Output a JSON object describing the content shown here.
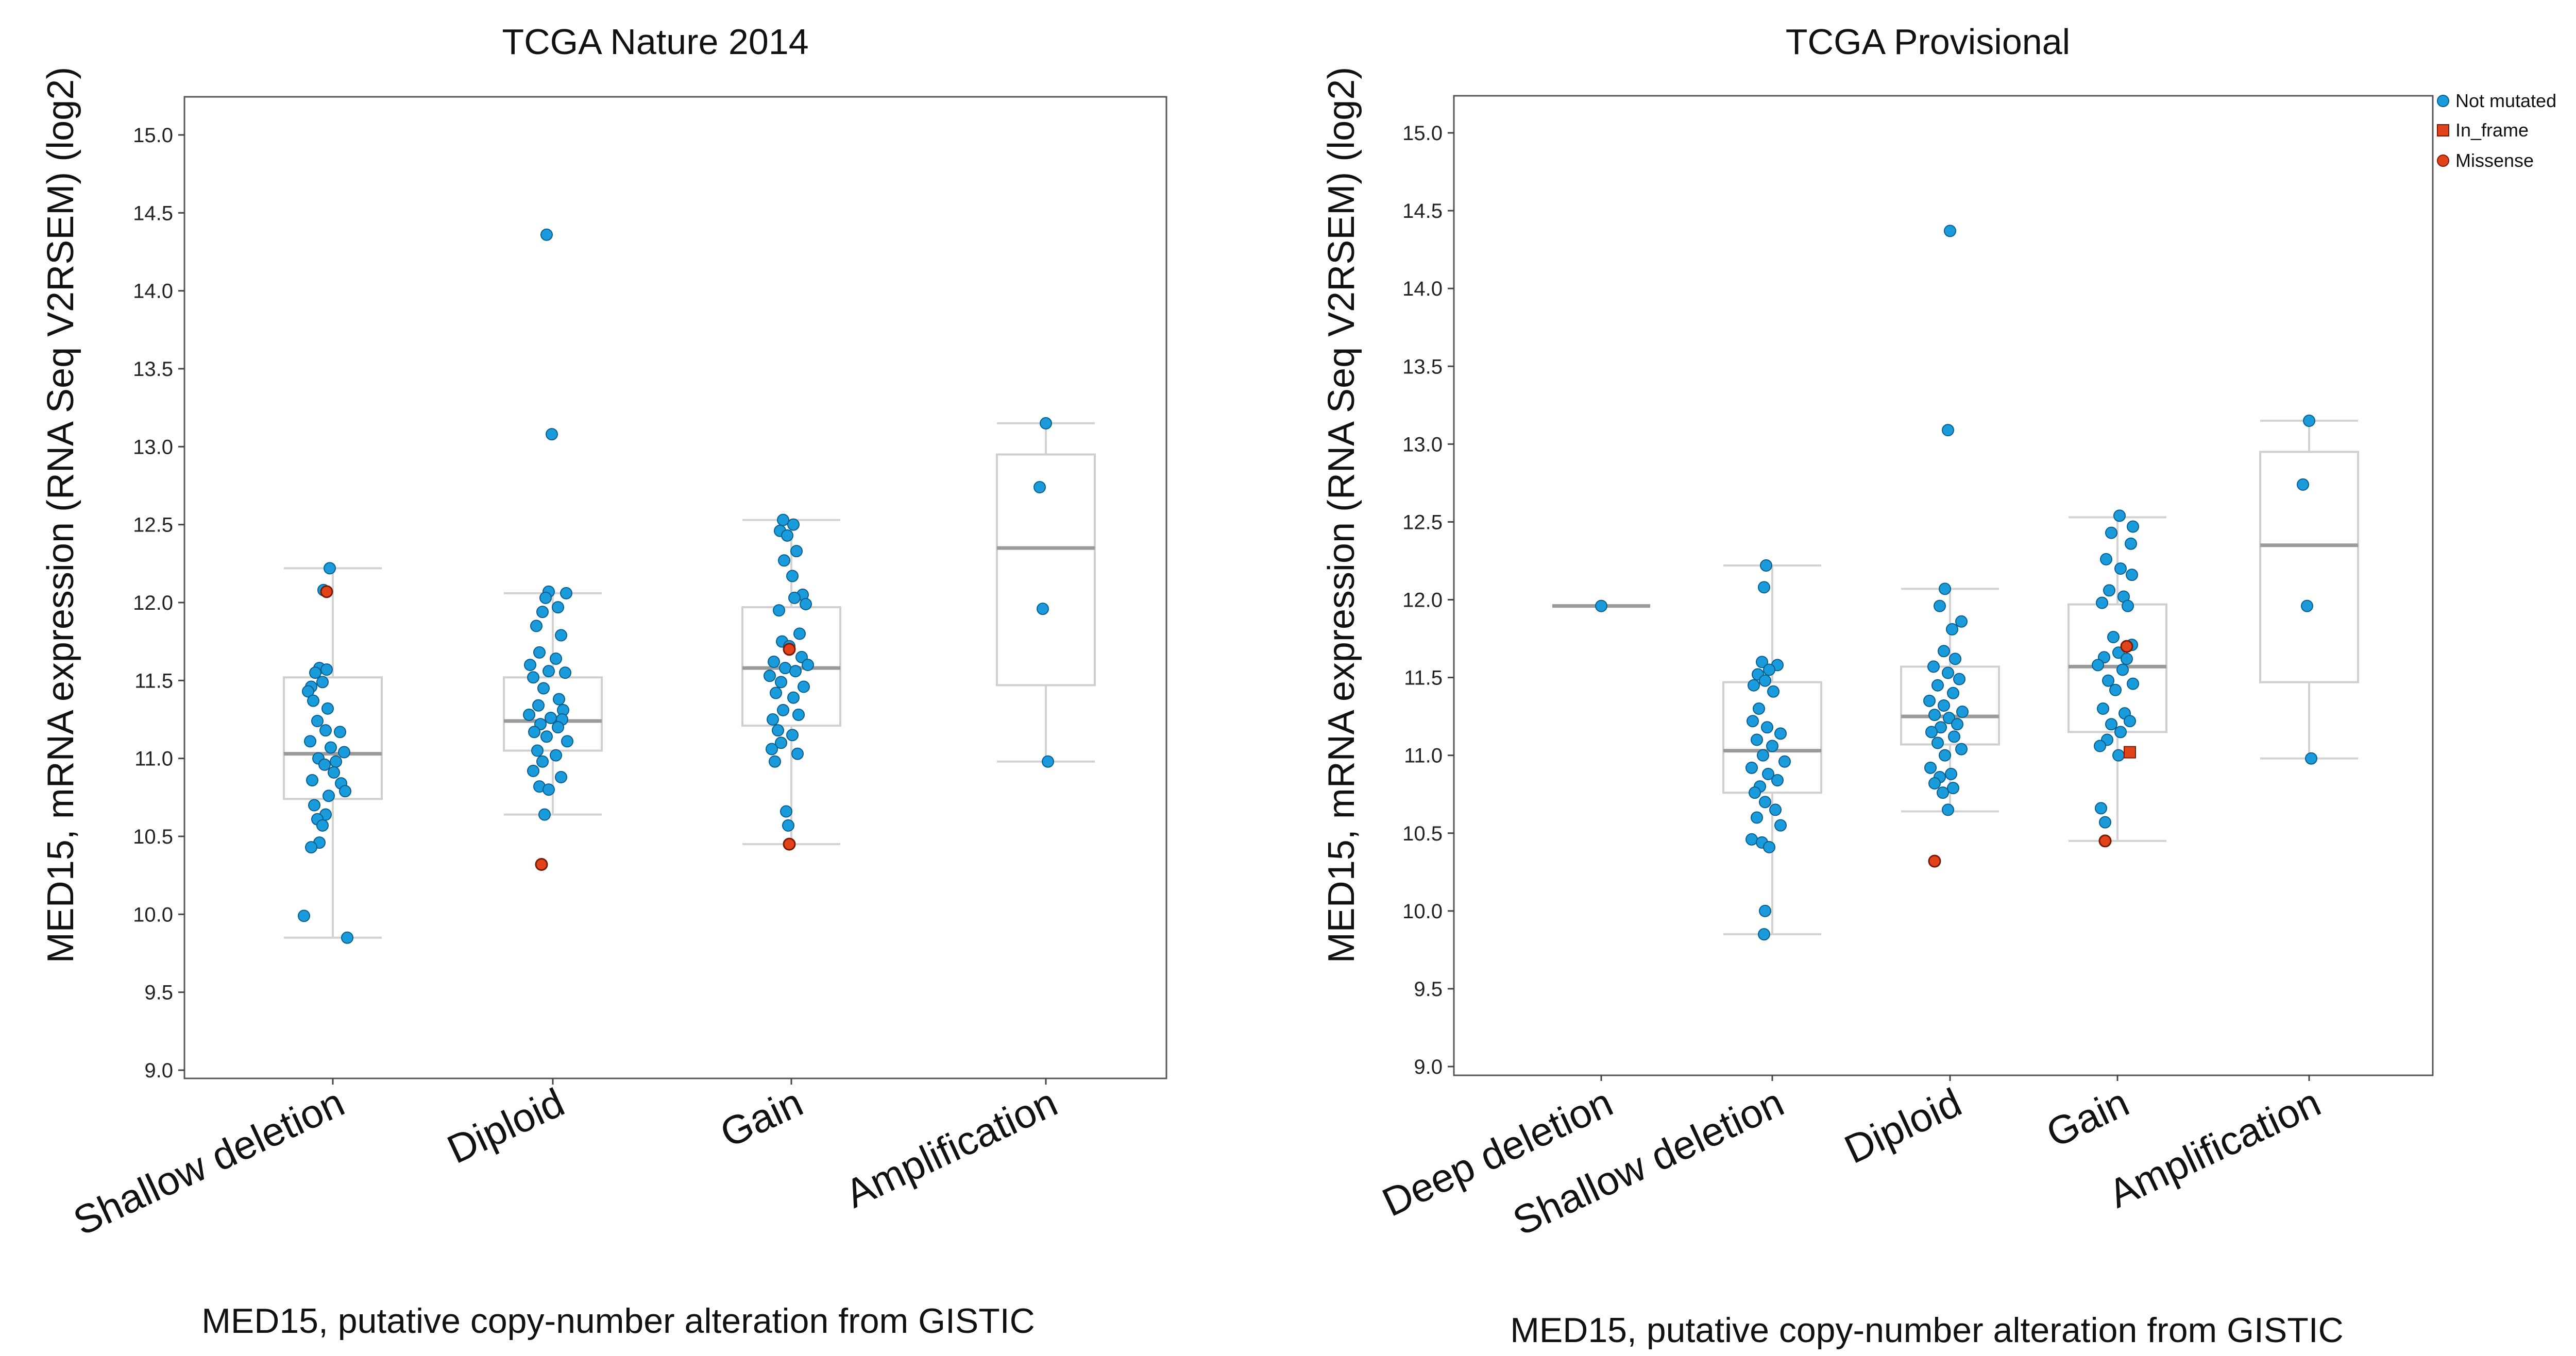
{
  "chart_data": [
    {
      "type": "box",
      "title": "TCGA Nature 2014",
      "xlabel": "MED15, putative copy-number alteration from GISTIC",
      "ylabel": "MED15, mRNA expression (RNA Seq V2RSEM) (log2)",
      "ylim": [
        9.0,
        15.0
      ],
      "yticks": [
        "9.0",
        "9.5",
        "10.0",
        "10.5",
        "11.0",
        "11.5",
        "12.0",
        "12.5",
        "13.0",
        "13.5",
        "14.0",
        "14.5",
        "15.0"
      ],
      "categories": [
        "Shallow deletion",
        "Diploid",
        "Gain",
        "Amplification"
      ],
      "boxes": [
        {
          "q1": 10.74,
          "median": 11.03,
          "q3": 11.52,
          "low": 9.85,
          "high": 12.22
        },
        {
          "q1": 11.05,
          "median": 11.24,
          "q3": 11.52,
          "low": 10.64,
          "high": 12.06
        },
        {
          "q1": 11.21,
          "median": 11.58,
          "q3": 11.97,
          "low": 10.45,
          "high": 12.53
        },
        {
          "q1": 11.47,
          "median": 12.35,
          "q3": 12.95,
          "low": 10.98,
          "high": 13.15
        }
      ],
      "points": [
        [
          [
            -6,
            12.22
          ],
          [
            -18,
            12.08
          ],
          [
            -26,
            11.58
          ],
          [
            -12,
            11.57
          ],
          [
            -34,
            11.55
          ],
          [
            -20,
            11.49
          ],
          [
            -42,
            11.46
          ],
          [
            -48,
            11.43
          ],
          [
            -38,
            11.37
          ],
          [
            -10,
            11.32
          ],
          [
            -30,
            11.24
          ],
          [
            -14,
            11.18
          ],
          [
            14,
            11.17
          ],
          [
            -44,
            11.11
          ],
          [
            -4,
            11.07
          ],
          [
            22,
            11.04
          ],
          [
            -28,
            11.0
          ],
          [
            6,
            10.98
          ],
          [
            -16,
            10.96
          ],
          [
            2,
            10.91
          ],
          [
            -40,
            10.86
          ],
          [
            16,
            10.84
          ],
          [
            24,
            10.79
          ],
          [
            -8,
            10.76
          ],
          [
            -36,
            10.7
          ],
          [
            -14,
            10.64
          ],
          [
            -30,
            10.61
          ],
          [
            -20,
            10.57
          ],
          [
            -26,
            10.46
          ],
          [
            -42,
            10.43
          ],
          [
            -56,
            9.99
          ],
          [
            28,
            9.85
          ]
        ],
        [
          [
            -12,
            14.36
          ],
          [
            -2,
            13.08
          ],
          [
            -8,
            12.07
          ],
          [
            26,
            12.06
          ],
          [
            -14,
            12.03
          ],
          [
            10,
            11.97
          ],
          [
            -20,
            11.94
          ],
          [
            -32,
            11.85
          ],
          [
            16,
            11.79
          ],
          [
            -26,
            11.68
          ],
          [
            6,
            11.64
          ],
          [
            -44,
            11.6
          ],
          [
            -8,
            11.56
          ],
          [
            24,
            11.55
          ],
          [
            -38,
            11.52
          ],
          [
            -18,
            11.45
          ],
          [
            12,
            11.38
          ],
          [
            -28,
            11.34
          ],
          [
            20,
            11.31
          ],
          [
            -46,
            11.28
          ],
          [
            -4,
            11.26
          ],
          [
            18,
            11.25
          ],
          [
            -24,
            11.22
          ],
          [
            10,
            11.2
          ],
          [
            -36,
            11.17
          ],
          [
            -12,
            11.14
          ],
          [
            28,
            11.11
          ],
          [
            -30,
            11.05
          ],
          [
            6,
            11.02
          ],
          [
            -20,
            10.98
          ],
          [
            -38,
            10.92
          ],
          [
            16,
            10.88
          ],
          [
            -26,
            10.82
          ],
          [
            -8,
            10.8
          ],
          [
            -16,
            10.64
          ]
        ],
        [
          [
            -16,
            12.53
          ],
          [
            4,
            12.5
          ],
          [
            -22,
            12.46
          ],
          [
            -8,
            12.43
          ],
          [
            10,
            12.33
          ],
          [
            -14,
            12.27
          ],
          [
            2,
            12.17
          ],
          [
            22,
            12.05
          ],
          [
            6,
            12.03
          ],
          [
            28,
            11.99
          ],
          [
            -24,
            11.95
          ],
          [
            16,
            11.8
          ],
          [
            -18,
            11.75
          ],
          [
            -4,
            11.72
          ],
          [
            20,
            11.65
          ],
          [
            -34,
            11.62
          ],
          [
            32,
            11.6
          ],
          [
            -12,
            11.58
          ],
          [
            8,
            11.56
          ],
          [
            -42,
            11.53
          ],
          [
            -20,
            11.49
          ],
          [
            24,
            11.46
          ],
          [
            -30,
            11.42
          ],
          [
            4,
            11.39
          ],
          [
            -16,
            11.31
          ],
          [
            14,
            11.28
          ],
          [
            -36,
            11.25
          ],
          [
            -26,
            11.18
          ],
          [
            2,
            11.15
          ],
          [
            -20,
            11.1
          ],
          [
            -38,
            11.06
          ],
          [
            12,
            11.03
          ],
          [
            -32,
            10.98
          ],
          [
            -10,
            10.66
          ],
          [
            -6,
            10.57
          ]
        ],
        [
          [
            0,
            13.15
          ],
          [
            -12,
            12.74
          ],
          [
            -6,
            11.96
          ],
          [
            4,
            10.98
          ]
        ]
      ],
      "mutations": [
        {
          "group": 0,
          "dx": -12,
          "y": 12.07,
          "type": "Missense"
        },
        {
          "group": 1,
          "dx": -22,
          "y": 10.32,
          "type": "Missense"
        },
        {
          "group": 2,
          "dx": -4,
          "y": 11.7,
          "type": "Missense"
        },
        {
          "group": 2,
          "dx": -4,
          "y": 10.45,
          "type": "Missense"
        }
      ]
    },
    {
      "type": "box",
      "title": "TCGA Provisional",
      "xlabel": "MED15, putative copy-number alteration from GISTIC",
      "ylabel": "MED15, mRNA expression (RNA Seq V2RSEM) (log2)",
      "ylim": [
        9.0,
        15.0
      ],
      "yticks": [
        "9.0",
        "9.5",
        "10.0",
        "10.5",
        "11.0",
        "11.5",
        "12.0",
        "12.5",
        "13.0",
        "13.5",
        "14.0",
        "14.5",
        "15.0"
      ],
      "categories": [
        "Deep deletion",
        "Shallow deletion",
        "Diploid",
        "Gain",
        "Amplification"
      ],
      "boxes": [
        {
          "q1": 11.96,
          "median": 11.96,
          "q3": 11.96,
          "low": 11.96,
          "high": 11.96
        },
        {
          "q1": 10.76,
          "median": 11.03,
          "q3": 11.47,
          "low": 9.85,
          "high": 12.22
        },
        {
          "q1": 11.07,
          "median": 11.25,
          "q3": 11.57,
          "low": 10.64,
          "high": 12.07
        },
        {
          "q1": 11.15,
          "median": 11.57,
          "q3": 11.97,
          "low": 10.45,
          "high": 12.53
        },
        {
          "q1": 11.47,
          "median": 12.35,
          "q3": 12.95,
          "low": 10.98,
          "high": 13.15
        }
      ],
      "points": [
        [
          [
            0,
            11.96
          ]
        ],
        [
          [
            -12,
            12.22
          ],
          [
            -16,
            12.08
          ],
          [
            -20,
            11.6
          ],
          [
            10,
            11.58
          ],
          [
            -6,
            11.55
          ],
          [
            -28,
            11.52
          ],
          [
            -14,
            11.48
          ],
          [
            -36,
            11.45
          ],
          [
            2,
            11.41
          ],
          [
            -26,
            11.3
          ],
          [
            -38,
            11.22
          ],
          [
            -10,
            11.18
          ],
          [
            16,
            11.14
          ],
          [
            -30,
            11.1
          ],
          [
            0,
            11.06
          ],
          [
            -18,
            11.0
          ],
          [
            24,
            10.96
          ],
          [
            -40,
            10.92
          ],
          [
            -8,
            10.88
          ],
          [
            10,
            10.84
          ],
          [
            -24,
            10.8
          ],
          [
            -34,
            10.76
          ],
          [
            -14,
            10.7
          ],
          [
            6,
            10.65
          ],
          [
            -30,
            10.6
          ],
          [
            16,
            10.55
          ],
          [
            -40,
            10.46
          ],
          [
            -20,
            10.44
          ],
          [
            -6,
            10.41
          ],
          [
            -14,
            10.0
          ],
          [
            -16,
            9.85
          ]
        ],
        [
          [
            0,
            14.37
          ],
          [
            -4,
            13.09
          ],
          [
            -10,
            12.07
          ],
          [
            -20,
            11.96
          ],
          [
            22,
            11.86
          ],
          [
            4,
            11.81
          ],
          [
            -12,
            11.67
          ],
          [
            10,
            11.62
          ],
          [
            -32,
            11.57
          ],
          [
            -4,
            11.53
          ],
          [
            18,
            11.49
          ],
          [
            -24,
            11.45
          ],
          [
            6,
            11.4
          ],
          [
            -40,
            11.35
          ],
          [
            -12,
            11.32
          ],
          [
            24,
            11.28
          ],
          [
            -30,
            11.26
          ],
          [
            -2,
            11.24
          ],
          [
            14,
            11.2
          ],
          [
            -18,
            11.18
          ],
          [
            -36,
            11.15
          ],
          [
            8,
            11.12
          ],
          [
            -24,
            11.08
          ],
          [
            22,
            11.04
          ],
          [
            -10,
            11.0
          ],
          [
            -38,
            10.92
          ],
          [
            2,
            10.88
          ],
          [
            -20,
            10.86
          ],
          [
            -30,
            10.82
          ],
          [
            6,
            10.79
          ],
          [
            -14,
            10.76
          ],
          [
            -4,
            10.65
          ]
        ],
        [
          [
            4,
            12.54
          ],
          [
            30,
            12.47
          ],
          [
            -12,
            12.43
          ],
          [
            26,
            12.36
          ],
          [
            -22,
            12.26
          ],
          [
            6,
            12.2
          ],
          [
            28,
            12.16
          ],
          [
            -16,
            12.06
          ],
          [
            12,
            12.02
          ],
          [
            -30,
            11.98
          ],
          [
            20,
            11.96
          ],
          [
            -8,
            11.76
          ],
          [
            28,
            11.71
          ],
          [
            2,
            11.66
          ],
          [
            -26,
            11.63
          ],
          [
            18,
            11.62
          ],
          [
            -38,
            11.58
          ],
          [
            10,
            11.55
          ],
          [
            -18,
            11.48
          ],
          [
            30,
            11.46
          ],
          [
            -4,
            11.42
          ],
          [
            -28,
            11.3
          ],
          [
            14,
            11.27
          ],
          [
            24,
            11.22
          ],
          [
            -12,
            11.2
          ],
          [
            6,
            11.15
          ],
          [
            -20,
            11.1
          ],
          [
            -34,
            11.06
          ],
          [
            2,
            11.0
          ],
          [
            -32,
            10.66
          ],
          [
            -24,
            10.57
          ]
        ],
        [
          [
            0,
            13.15
          ],
          [
            -12,
            12.74
          ],
          [
            -4,
            11.96
          ],
          [
            4,
            10.98
          ]
        ]
      ],
      "mutations": [
        {
          "group": 2,
          "dx": -30,
          "y": 10.32,
          "type": "Missense"
        },
        {
          "group": 3,
          "dx": 18,
          "y": 11.7,
          "type": "Missense"
        },
        {
          "group": 3,
          "dx": 24,
          "y": 11.02,
          "type": "In_frame"
        },
        {
          "group": 3,
          "dx": -24,
          "y": 10.45,
          "type": "Missense"
        }
      ],
      "legend": [
        {
          "label": "Not mutated",
          "shape": "circle",
          "color": "#1a9bdc"
        },
        {
          "label": "In_frame",
          "shape": "square",
          "color": "#e3431a"
        },
        {
          "label": "Missense",
          "shape": "circle",
          "color": "#e3431a"
        }
      ]
    }
  ],
  "colors": {
    "not_mutated": "#1a9bdc",
    "not_mutated_edge": "#0a5e8c",
    "mutated": "#e3431a",
    "mutated_edge": "#7a1a05"
  }
}
